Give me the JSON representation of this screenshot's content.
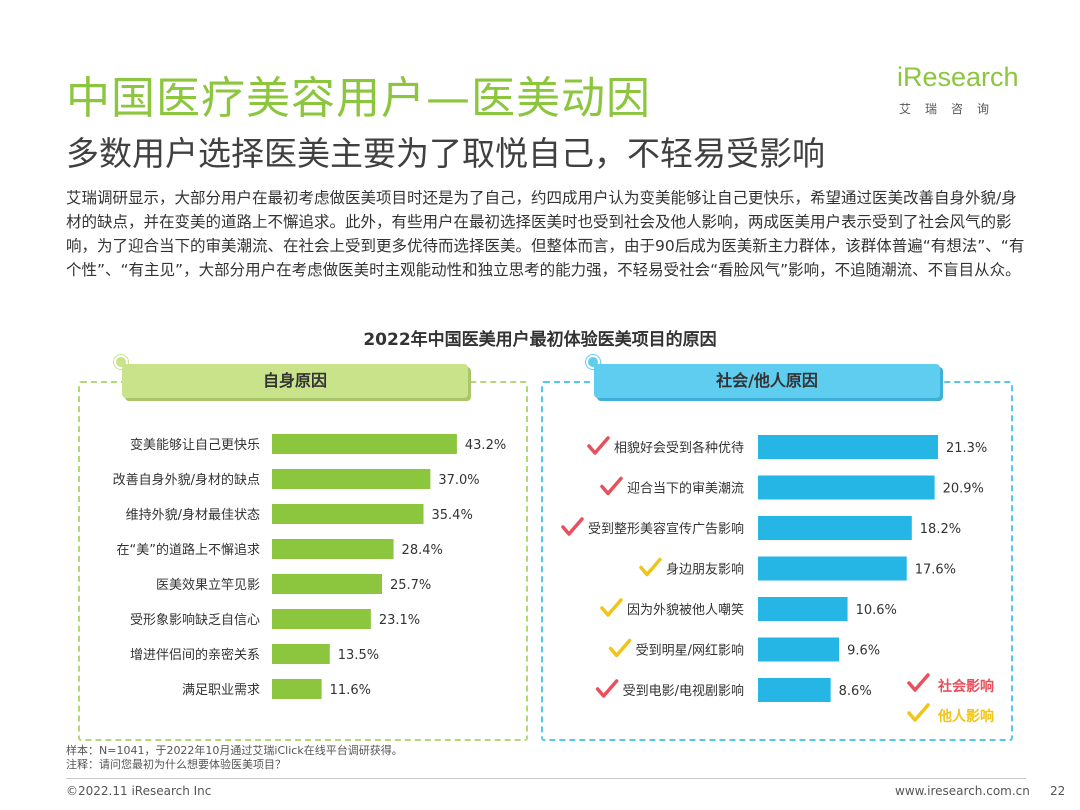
{
  "header": {
    "title": "中国医疗美容用户—医美动因",
    "subtitle": "多数用户选择医美主要为了取悦自己，不轻易受影响",
    "logo_text": "iResearch",
    "logo_cn": "艾瑞咨询"
  },
  "description": "艾瑞调研显示，大部分用户在最初考虑做医美项目时还是为了自己，约四成用户认为变美能够让自己更快乐，希望通过医美改善自身外貌/身材的缺点，并在变美的道路上不懈追求。此外，有些用户在最初选择医美时也受到社会及他人影响，两成医美用户表示受到了社会风气的影响，为了迎合当下的审美潮流、在社会上受到更多优待而选择医美。但整体而言，由于90后成为医美新主力群体，该群体普遍“有想法”、“有个性”、“有主见”，大部分用户在考虑做医美时主观能动性和独立思考的能力强，不轻易受社会“看脸风气”影响，不追随潮流、不盲目从众。",
  "colors": {
    "accent_green": "#8cc63f",
    "accent_blue": "#25b6e6",
    "check_red": "#e8515c",
    "check_yellow": "#f0c419"
  },
  "chart_data": [
    {
      "type": "bar",
      "orientation": "horizontal",
      "title": "2022年中国医美用户最初体验医美项目的原因",
      "panel_label": "自身原因",
      "color": "#8cc63f",
      "categories": [
        "变美能够让自己更快乐",
        "改善自身外貌/身材的缺点",
        "维持外貌/身材最佳状态",
        "在“美”的道路上不懈追求",
        "医美效果立竿见影",
        "受形象影响缺乏自信心",
        "增进伴侣间的亲密关系",
        "满足职业需求"
      ],
      "values": [
        43.2,
        37.0,
        35.4,
        28.4,
        25.7,
        23.1,
        13.5,
        11.6
      ],
      "value_labels": [
        "43.2%",
        "37.0%",
        "35.4%",
        "28.4%",
        "25.7%",
        "23.1%",
        "13.5%",
        "11.6%"
      ],
      "unit": "%"
    },
    {
      "type": "bar",
      "orientation": "horizontal",
      "panel_label": "社会/他人原因",
      "color": "#25b6e6",
      "categories": [
        "相貌好会受到各种优待",
        "迎合当下的审美潮流",
        "受到整形美容宣传广告影响",
        "身边朋友影响",
        "因为外貌被他人嘲笑",
        "受到明星/网红影响",
        "受到电影/电视剧影响"
      ],
      "values": [
        21.3,
        20.9,
        18.2,
        17.6,
        10.6,
        9.6,
        8.6
      ],
      "value_labels": [
        "21.3%",
        "20.9%",
        "18.2%",
        "17.6%",
        "10.6%",
        "9.6%",
        "8.6%"
      ],
      "marks": [
        "社会影响",
        "社会影响",
        "社会影响",
        "他人影响",
        "他人影响",
        "他人影响",
        "社会影响"
      ],
      "legend": [
        {
          "label": "社会影响",
          "color": "#e8515c"
        },
        {
          "label": "他人影响",
          "color": "#f0c419"
        }
      ],
      "unit": "%"
    }
  ],
  "notes": {
    "sample": "样本：N=1041，于2022年10月通过艾瑞iClick在线平台调研获得。",
    "comment": "注释：请问您最初为什么想要体验医美项目？"
  },
  "footer": {
    "copyright": "©2022.11 iResearch Inc",
    "website": "www.iresearch.com.cn",
    "page": "22"
  }
}
